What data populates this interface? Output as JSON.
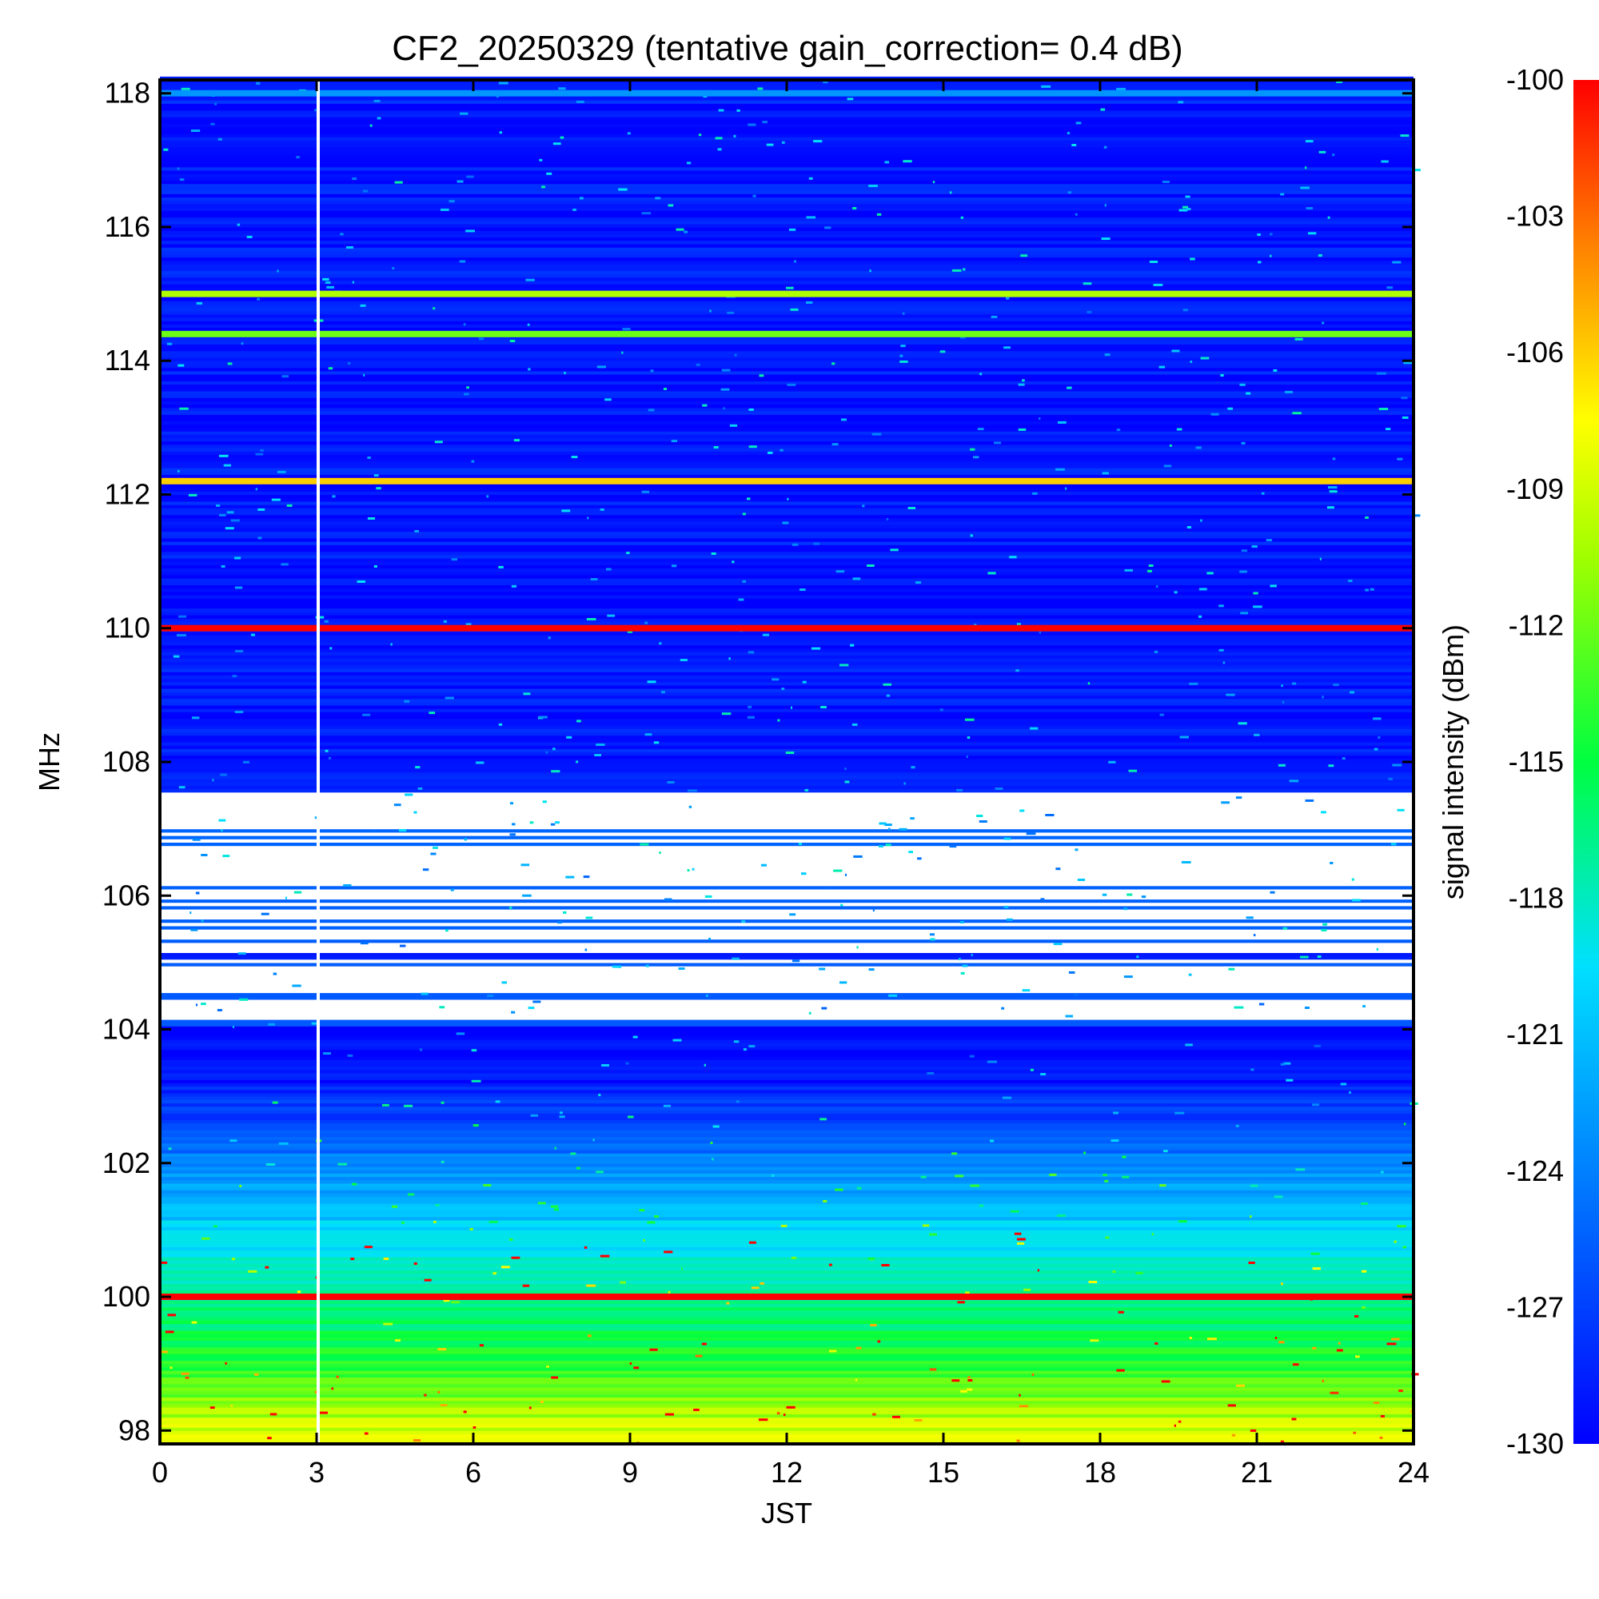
{
  "chart_data": {
    "type": "heatmap",
    "title": "CF2_20250329 (tentative gain_correction=  0.4 dB)",
    "xlabel": "JST",
    "ylabel": "MHz",
    "colorbar_label": "signal intensity (dBm)",
    "xlim": [
      0,
      24
    ],
    "ylim": [
      97.8,
      118.2
    ],
    "x_ticks": [
      0,
      3,
      6,
      9,
      12,
      15,
      18,
      21,
      24
    ],
    "y_ticks": [
      98,
      100,
      102,
      104,
      106,
      108,
      110,
      112,
      114,
      116,
      118
    ],
    "colorbar_range": [
      -130,
      -100
    ],
    "colorbar_ticks": [
      -100,
      -103,
      -106,
      -109,
      -112,
      -115,
      -118,
      -121,
      -124,
      -127,
      -130
    ],
    "colormap": "rainbow (blue to red)",
    "data_gap_hours": [
      3.0,
      3.05
    ],
    "strong_carriers_mhz": [
      {
        "freq": 118.0,
        "level": -123
      },
      {
        "freq": 115.0,
        "level": -110
      },
      {
        "freq": 114.4,
        "level": -112
      },
      {
        "freq": 112.2,
        "level": -106
      },
      {
        "freq": 110.0,
        "level": -100
      },
      {
        "freq": 100.0,
        "level": -100
      }
    ],
    "background_profile_dbm": [
      {
        "freq": 118,
        "level": -129
      },
      {
        "freq": 108.1,
        "level": -129
      },
      {
        "freq": 103.5,
        "level": -130
      },
      {
        "freq": 102,
        "level": -124
      },
      {
        "freq": 101,
        "level": -120
      },
      {
        "freq": 100,
        "level": -117
      },
      {
        "freq": 99,
        "level": -114
      },
      {
        "freq": 98,
        "level": -109
      }
    ],
    "saturated_region_mhz": [
      104.0,
      107.5
    ]
  }
}
